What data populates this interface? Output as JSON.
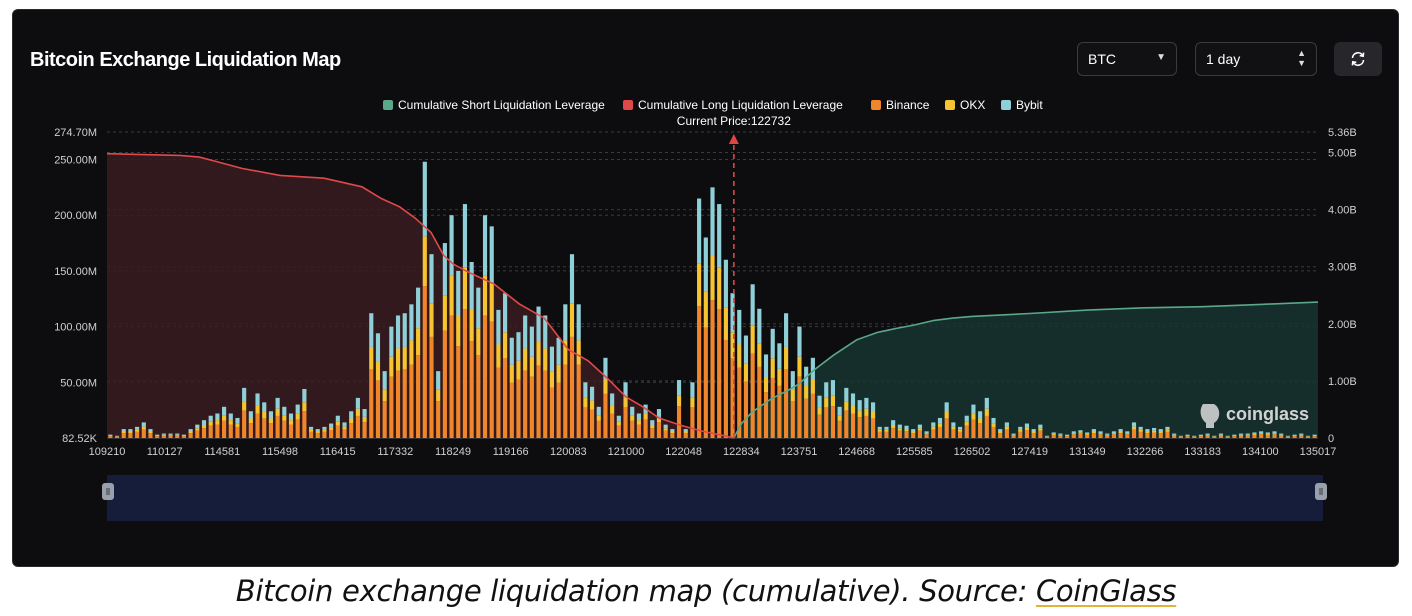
{
  "header": {
    "title": "Bitcoin Exchange Liquidation Map"
  },
  "controls": {
    "symbol": "BTC",
    "range": "1 day",
    "refresh_icon": "refresh-icon"
  },
  "brand": {
    "watermark": "coinglass"
  },
  "caption": {
    "text": "Bitcoin exchange liquidation map (cumulative). Source: ",
    "link": "CoinGlass"
  },
  "colors": {
    "binance": "#f0862b",
    "okx": "#f5c430",
    "bybit": "#8fd0d8",
    "short": "#5aa889",
    "long": "#e0494a",
    "current": "#e04545"
  },
  "chart_data": {
    "type": "bar",
    "title": "Bitcoin Exchange Liquidation Map",
    "current_price": 122732,
    "current_price_label": "Current Price:122732",
    "legend": [
      "Cumulative Short Liquidation Leverage",
      "Cumulative Long Liquidation Leverage",
      "Binance",
      "OKX",
      "Bybit"
    ],
    "x_tick_labels": [
      "109210",
      "110127",
      "114581",
      "115498",
      "116415",
      "117332",
      "118249",
      "119166",
      "120083",
      "121000",
      "122048",
      "122834",
      "123751",
      "124668",
      "125585",
      "126502",
      "127419",
      "131349",
      "132266",
      "133183",
      "134100",
      "135017"
    ],
    "y_left_ticks": [
      "82.52K",
      "50.00M",
      "100.00M",
      "150.00M",
      "200.00M",
      "250.00M",
      "274.70M"
    ],
    "y_left_values": [
      0,
      50,
      100,
      150,
      200,
      250,
      274.7
    ],
    "y_right_ticks": [
      "0",
      "1.00B",
      "2.00B",
      "3.00B",
      "4.00B",
      "5.00B",
      "5.36B"
    ],
    "y_right_values": [
      0,
      1,
      2,
      3,
      4,
      5,
      5.36
    ],
    "left_unit": "M",
    "right_unit": "B",
    "ylim_left": [
      0,
      274.7
    ],
    "ylim_right": [
      0,
      5.36
    ],
    "bar_totals_M": [
      3,
      2,
      8,
      8,
      10,
      14,
      8,
      3,
      4,
      4,
      4,
      3,
      8,
      12,
      16,
      20,
      22,
      28,
      22,
      18,
      45,
      24,
      40,
      32,
      24,
      36,
      28,
      22,
      30,
      44,
      10,
      8,
      10,
      13,
      20,
      14,
      24,
      36,
      26,
      112,
      94,
      60,
      100,
      110,
      112,
      120,
      135,
      248,
      165,
      60,
      175,
      200,
      150,
      210,
      158,
      135,
      200,
      190,
      115,
      130,
      90,
      95,
      110,
      100,
      118,
      110,
      82,
      90,
      120,
      165,
      120,
      50,
      46,
      28,
      72,
      40,
      20,
      50,
      28,
      22,
      30,
      16,
      26,
      12,
      8,
      52,
      8,
      50,
      215,
      180,
      225,
      210,
      160,
      130,
      115,
      92,
      138,
      116,
      75,
      98,
      85,
      112,
      60,
      100,
      64,
      72,
      38,
      50,
      52,
      28,
      45,
      40,
      34,
      36,
      32,
      10,
      10,
      16,
      12,
      11,
      8,
      12,
      6,
      14,
      18,
      32,
      14,
      10,
      20,
      30,
      24,
      36,
      18,
      8,
      14,
      4,
      10,
      13,
      8,
      12,
      2,
      5,
      4,
      3,
      6,
      7,
      5,
      8,
      6,
      4,
      6,
      8,
      6,
      14,
      10,
      8,
      9,
      8,
      10,
      4,
      2,
      3,
      2,
      3,
      4,
      2,
      4,
      2,
      3,
      4,
      4,
      5,
      6,
      5,
      6,
      4,
      2,
      3,
      4,
      2,
      3
    ],
    "bar_mix": {
      "binance": 0.55,
      "okx": 0.18,
      "bybit": 0.27
    },
    "long_cumulative_B": [
      [
        109210,
        4.98
      ],
      [
        111300,
        4.95
      ],
      [
        112800,
        4.92
      ],
      [
        114000,
        4.85
      ],
      [
        114900,
        4.72
      ],
      [
        115500,
        4.6
      ],
      [
        116200,
        4.55
      ],
      [
        116800,
        4.4
      ],
      [
        117100,
        4.2
      ],
      [
        117400,
        4.05
      ],
      [
        117650,
        3.85
      ],
      [
        117900,
        3.6
      ],
      [
        118100,
        3.2
      ],
      [
        118249,
        3.05
      ],
      [
        118500,
        2.9
      ],
      [
        118900,
        2.7
      ],
      [
        119300,
        2.35
      ],
      [
        119700,
        2.1
      ],
      [
        120083,
        1.55
      ],
      [
        120400,
        1.35
      ],
      [
        120700,
        1.05
      ],
      [
        121000,
        0.72
      ],
      [
        121300,
        0.55
      ],
      [
        121600,
        0.35
      ],
      [
        122000,
        0.22
      ],
      [
        122300,
        0.12
      ],
      [
        122600,
        0.04
      ],
      [
        122732,
        0
      ]
    ],
    "short_cumulative_B": [
      [
        122732,
        0
      ],
      [
        122834,
        0.25
      ],
      [
        123000,
        0.45
      ],
      [
        123300,
        0.68
      ],
      [
        123600,
        0.85
      ],
      [
        123751,
        0.95
      ],
      [
        124000,
        1.2
      ],
      [
        124300,
        1.45
      ],
      [
        124668,
        1.72
      ],
      [
        125000,
        1.85
      ],
      [
        125300,
        1.92
      ],
      [
        125585,
        1.98
      ],
      [
        125900,
        2.06
      ],
      [
        126200,
        2.1
      ],
      [
        126502,
        2.13
      ],
      [
        127419,
        2.18
      ],
      [
        131349,
        2.24
      ],
      [
        132266,
        2.28
      ],
      [
        133183,
        2.3
      ],
      [
        134100,
        2.34
      ],
      [
        135017,
        2.38
      ]
    ]
  }
}
